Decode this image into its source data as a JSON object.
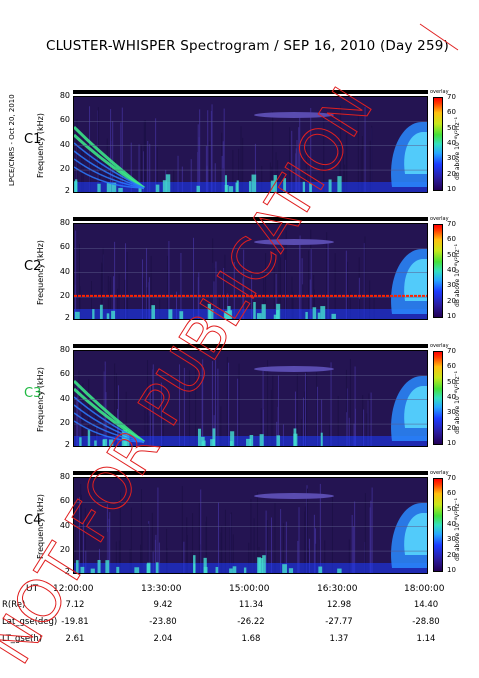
{
  "title": "CLUSTER-WHISPER Spectrogram / SEP 16, 2010 (Day 259)",
  "side_label": "LPCE/CNRS - Oct 20, 2010",
  "watermark": "NOT FOR PUBLICATION",
  "chart_data": {
    "type": "heatmap",
    "panels": [
      {
        "name": "C1",
        "ylabel": "Frequency (kHz)",
        "ylim": [
          2,
          80
        ],
        "yticks": [
          "80",
          "60",
          "40",
          "20",
          "2"
        ]
      },
      {
        "name": "C2",
        "ylabel": "Frequency (kHz)",
        "ylim": [
          2,
          80
        ],
        "yticks": [
          "80",
          "60",
          "40",
          "20",
          "2"
        ],
        "reference_line_khz": 21
      },
      {
        "name": "C3",
        "ylabel": "Frequency (kHz)",
        "ylim": [
          2,
          80
        ],
        "yticks": [
          "80",
          "60",
          "40",
          "20",
          "2"
        ],
        "name_color": "#22bb44"
      },
      {
        "name": "C4",
        "ylabel": "Frequency (kHz)",
        "ylim": [
          2,
          80
        ],
        "yticks": [
          "80",
          "60",
          "40",
          "20",
          "2"
        ]
      }
    ],
    "colorbar": {
      "ticks": [
        "70",
        "60",
        "50",
        "40",
        "30",
        "20",
        "10"
      ],
      "label": "dB above 10⁻⁸V²Hz⁻¹",
      "small_label": "overlay"
    },
    "x_axis": {
      "label": "UT",
      "ticks": [
        "12:00:00",
        "13:30:00",
        "15:00:00",
        "16:30:00",
        "18:00:00"
      ]
    },
    "ephemeris": [
      {
        "label": "R(Re)",
        "values": [
          "7.12",
          "9.42",
          "11.34",
          "12.98",
          "14.40"
        ]
      },
      {
        "label": "Lat_gse(deg)",
        "values": [
          "-19.81",
          "-23.80",
          "-26.22",
          "-27.77",
          "-28.80"
        ]
      },
      {
        "label": "LT_gse(h)",
        "values": [
          "2.61",
          "2.04",
          "1.68",
          "1.37",
          "1.14"
        ]
      }
    ],
    "colors": {
      "background": "#241452",
      "line": "#ff2200",
      "noise": "#1c3cff",
      "burst": "#44e0d0"
    }
  }
}
